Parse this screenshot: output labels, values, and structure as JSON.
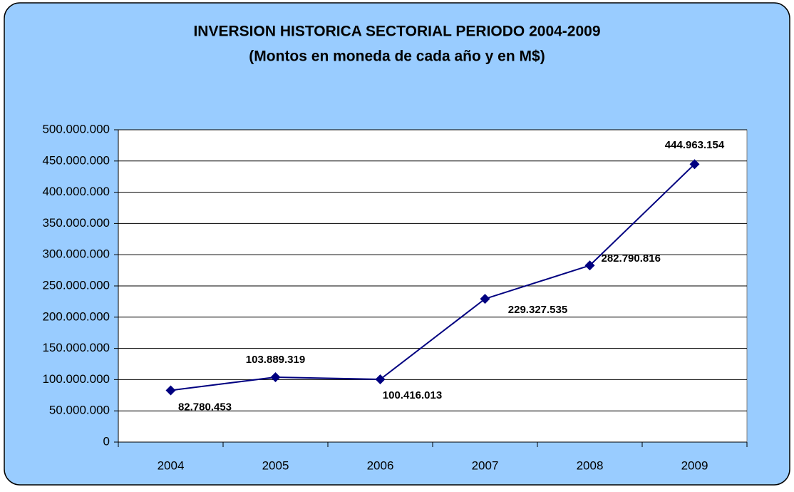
{
  "chart_data": {
    "type": "line",
    "title": "INVERSION HISTORICA SECTORIAL PERIODO 2004-2009",
    "subtitle": "(Montos en moneda de cada año y en M$)",
    "categories": [
      "2004",
      "2005",
      "2006",
      "2007",
      "2008",
      "2009"
    ],
    "series": [
      {
        "name": null,
        "color": "#000080",
        "values": [
          82780453,
          103889319,
          100416013,
          229327535,
          282790816,
          444963154
        ],
        "value_labels": [
          "82.780.453",
          "103.889.319",
          "100.416.013",
          "229.327.535",
          "282.790.816",
          "444.963.154"
        ]
      }
    ],
    "ylim": [
      0,
      500000000
    ],
    "yticks": [
      0,
      {
        "value": 50000000,
        "label": "50.000.000"
      },
      {
        "value": 100000000,
        "label": "100.000.000"
      },
      {
        "value": 150000000,
        "label": "150.000.000"
      },
      {
        "value": 200000000,
        "label": "200.000.000"
      },
      {
        "value": 250000000,
        "label": "250.000.000"
      },
      {
        "value": 300000000,
        "label": "300.000.000"
      },
      {
        "value": 350000000,
        "label": "350.000.000"
      },
      {
        "value": 400000000,
        "label": "400.000.000"
      },
      {
        "value": 450000000,
        "label": "450.000.000"
      },
      {
        "value": 500000000,
        "label": "500.000.000"
      }
    ],
    "grid": true
  }
}
